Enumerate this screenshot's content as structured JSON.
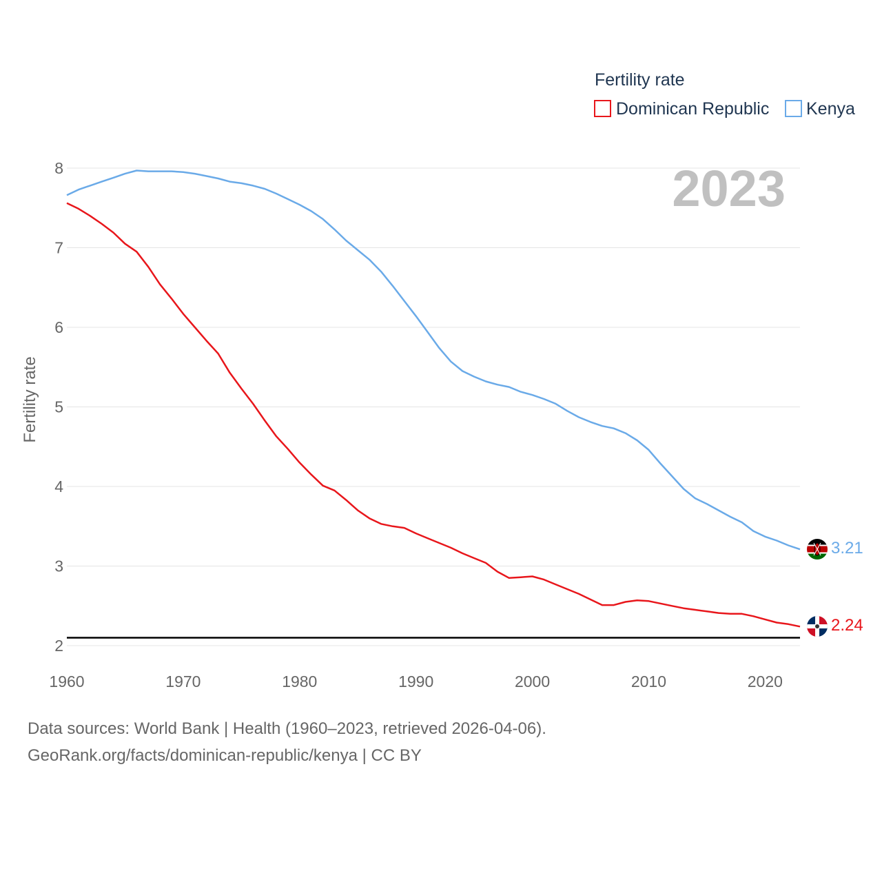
{
  "chart_data": {
    "type": "line",
    "title": "Fertility rate",
    "ylabel": "Fertility rate",
    "xlabel": "",
    "xlim": [
      1960,
      2023
    ],
    "ylim": [
      2,
      8
    ],
    "x_ticks": [
      1960,
      1970,
      1980,
      1990,
      2000,
      2010,
      2020
    ],
    "y_ticks": [
      2,
      3,
      4,
      5,
      6,
      7,
      8
    ],
    "grid": true,
    "legend_position": "top-right",
    "current_year": "2023",
    "reference_line": {
      "y": 2.1,
      "color": "#000000"
    },
    "years": [
      1960,
      1961,
      1962,
      1963,
      1964,
      1965,
      1966,
      1967,
      1968,
      1969,
      1970,
      1971,
      1972,
      1973,
      1974,
      1975,
      1976,
      1977,
      1978,
      1979,
      1980,
      1981,
      1982,
      1983,
      1984,
      1985,
      1986,
      1987,
      1988,
      1989,
      1990,
      1991,
      1992,
      1993,
      1994,
      1995,
      1996,
      1997,
      1998,
      1999,
      2000,
      2001,
      2002,
      2003,
      2004,
      2005,
      2006,
      2007,
      2008,
      2009,
      2010,
      2011,
      2012,
      2013,
      2014,
      2015,
      2016,
      2017,
      2018,
      2019,
      2020,
      2021,
      2022,
      2023
    ],
    "series": [
      {
        "name": "Dominican Republic",
        "color": "#e8161b",
        "end_label": "2.24",
        "flag": "dominican-republic-flag-icon",
        "values": [
          7.56,
          7.49,
          7.4,
          7.3,
          7.19,
          7.05,
          6.95,
          6.76,
          6.54,
          6.36,
          6.17,
          6.0,
          5.83,
          5.67,
          5.43,
          5.23,
          5.04,
          4.83,
          4.63,
          4.47,
          4.3,
          4.15,
          4.01,
          3.95,
          3.83,
          3.7,
          3.6,
          3.53,
          3.5,
          3.48,
          3.41,
          3.35,
          3.29,
          3.23,
          3.16,
          3.1,
          3.04,
          2.93,
          2.85,
          2.86,
          2.87,
          2.83,
          2.77,
          2.71,
          2.65,
          2.58,
          2.51,
          2.51,
          2.55,
          2.57,
          2.56,
          2.53,
          2.5,
          2.47,
          2.45,
          2.43,
          2.41,
          2.4,
          2.4,
          2.37,
          2.33,
          2.29,
          2.27,
          2.24
        ]
      },
      {
        "name": "Kenya",
        "color": "#6aaae8",
        "end_label": "3.21",
        "flag": "kenya-flag-icon",
        "values": [
          7.66,
          7.73,
          7.78,
          7.83,
          7.88,
          7.93,
          7.97,
          7.96,
          7.96,
          7.96,
          7.95,
          7.93,
          7.9,
          7.87,
          7.83,
          7.81,
          7.78,
          7.74,
          7.68,
          7.61,
          7.54,
          7.46,
          7.36,
          7.23,
          7.09,
          6.97,
          6.85,
          6.7,
          6.52,
          6.33,
          6.14,
          5.94,
          5.74,
          5.57,
          5.45,
          5.38,
          5.32,
          5.28,
          5.25,
          5.19,
          5.15,
          5.1,
          5.04,
          4.95,
          4.87,
          4.81,
          4.76,
          4.73,
          4.67,
          4.58,
          4.46,
          4.29,
          4.13,
          3.97,
          3.85,
          3.78,
          3.7,
          3.62,
          3.55,
          3.44,
          3.37,
          3.32,
          3.26,
          3.21
        ]
      }
    ]
  },
  "footer": {
    "source_line_1": "Data sources: World Bank | Health (1960–2023, retrieved 2026-04-06).",
    "source_line_2": "GeoRank.org/facts/dominican-republic/kenya | CC BY"
  }
}
